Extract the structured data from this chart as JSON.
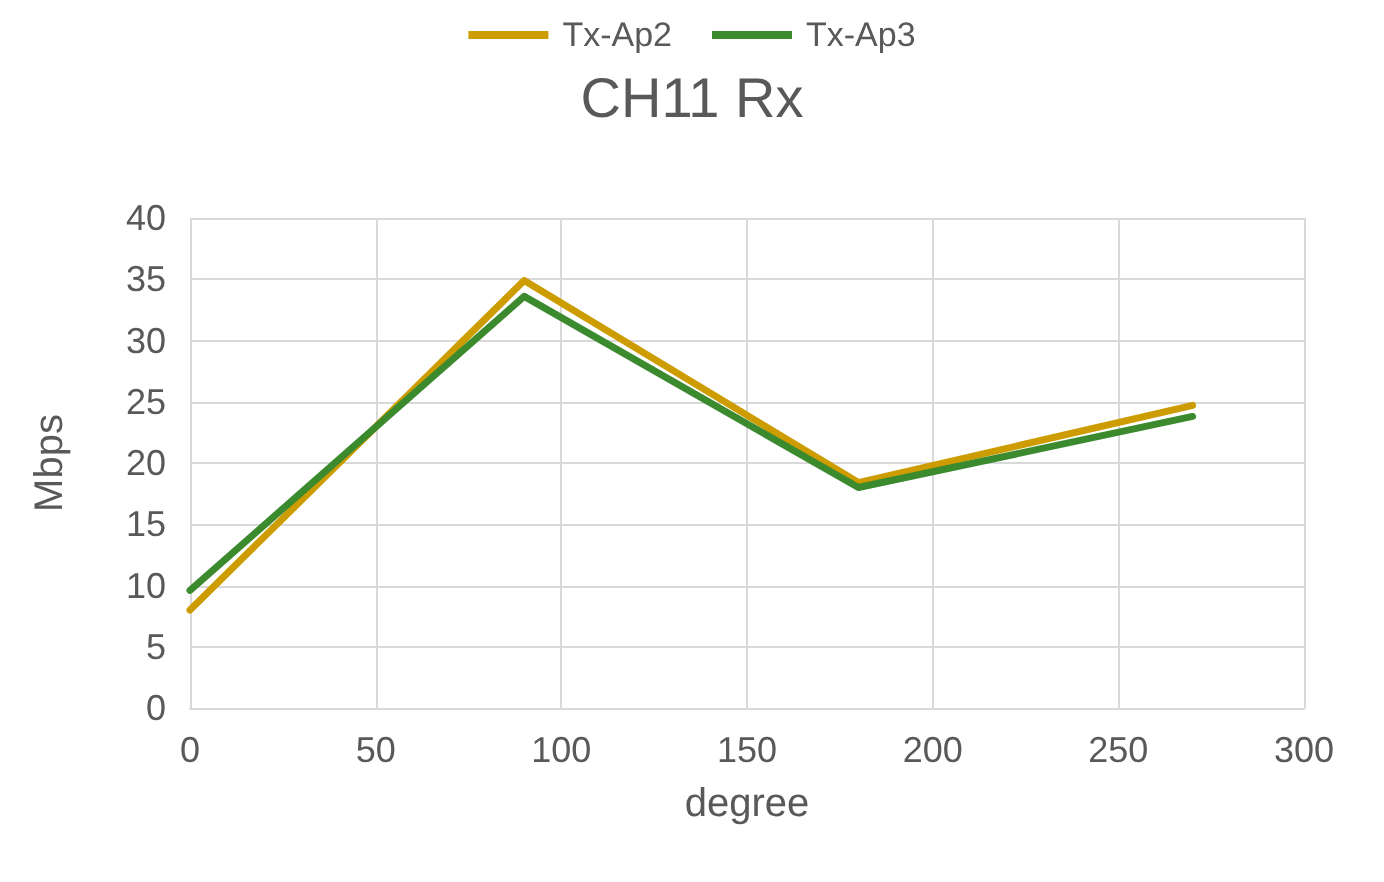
{
  "chart_data": {
    "type": "line",
    "title": "CH11 Rx",
    "xlabel": "degree",
    "ylabel": "Mbps",
    "x": [
      0,
      90,
      180,
      270
    ],
    "series": [
      {
        "name": "Tx-Ap2",
        "color": "#cc9c00",
        "values": [
          8,
          34.9,
          18.4,
          24.7
        ]
      },
      {
        "name": "Tx-Ap3",
        "color": "#3b8a2e",
        "values": [
          9.6,
          33.6,
          18,
          23.8
        ]
      }
    ],
    "xlim": [
      0,
      300
    ],
    "xticks": [
      0,
      50,
      100,
      150,
      200,
      250,
      300
    ],
    "ylim": [
      0,
      40
    ],
    "yticks": [
      0,
      5,
      10,
      15,
      20,
      25,
      30,
      35,
      40
    ],
    "grid": true,
    "legend": "top",
    "marker": "none",
    "line_style": "solid"
  }
}
